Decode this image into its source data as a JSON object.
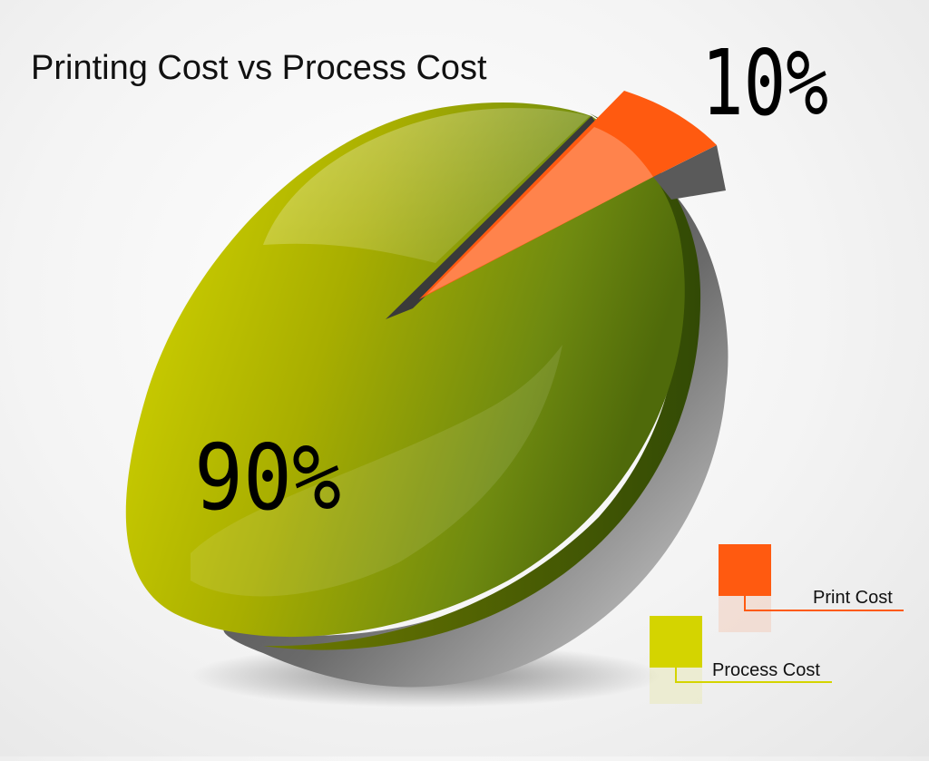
{
  "chart_data": {
    "type": "pie",
    "title": "Printing Cost vs Process Cost",
    "slices": [
      {
        "label": "Print Cost",
        "value": 10,
        "value_label": "10%",
        "color": "#ff5a10"
      },
      {
        "label": "Process Cost",
        "value": 90,
        "value_label": "90%",
        "color": "#d4d400"
      }
    ],
    "legend": {
      "placement": "bottom-right",
      "entries": [
        "Print Cost",
        "Process Cost"
      ]
    }
  }
}
